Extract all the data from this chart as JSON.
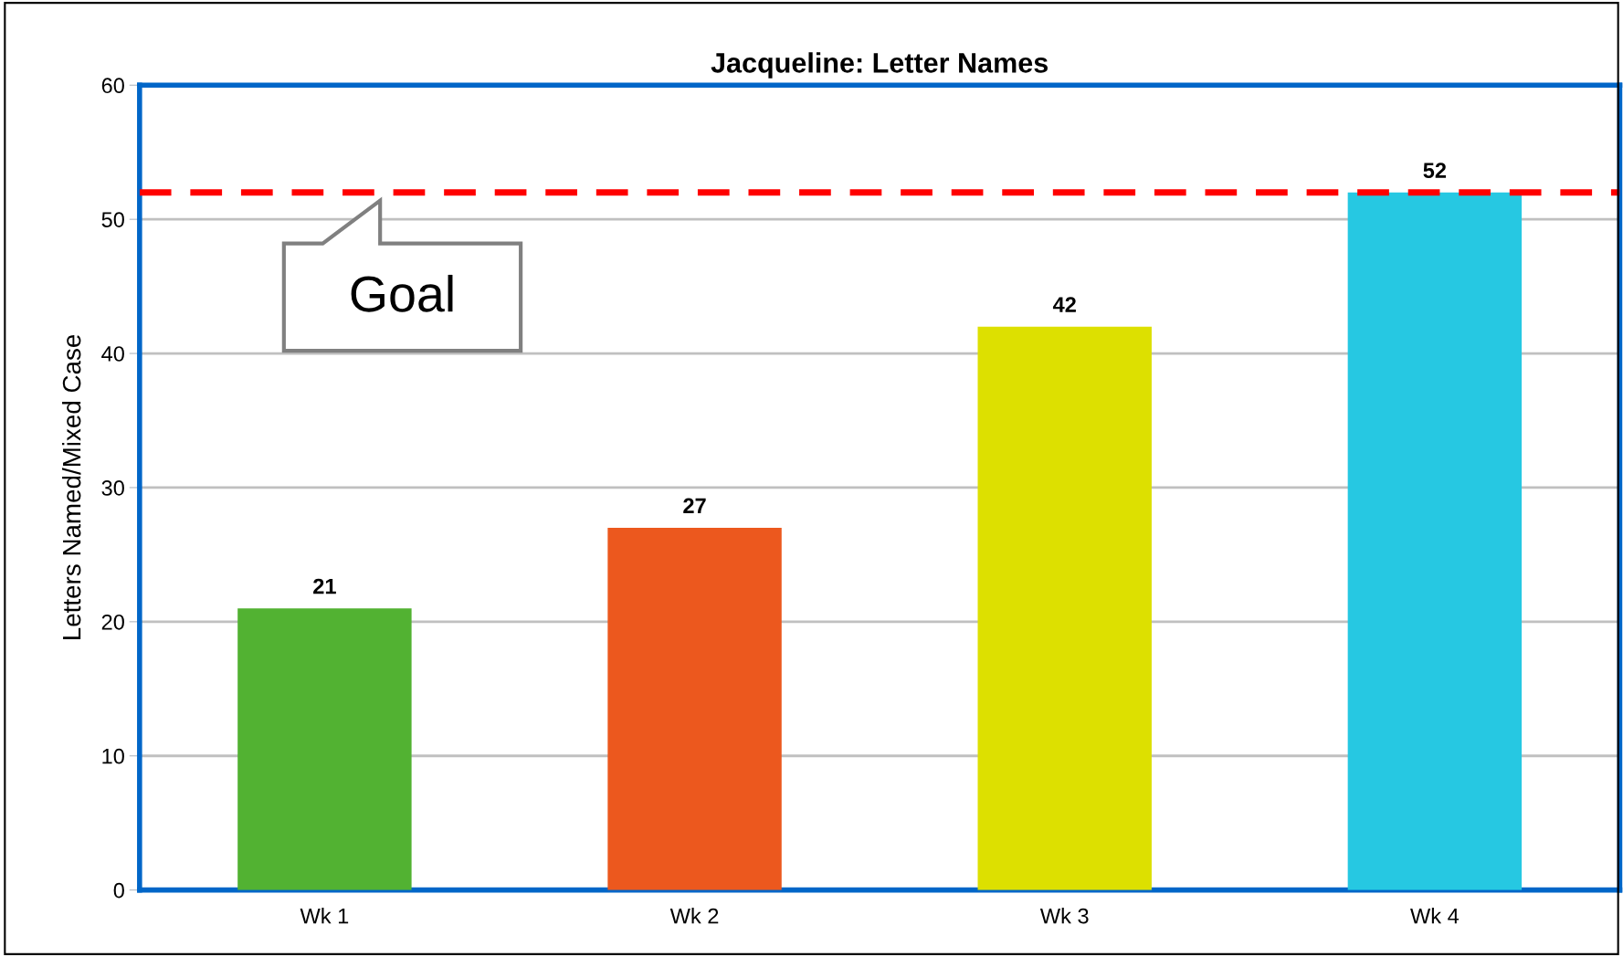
{
  "chart_data": {
    "type": "bar",
    "title": "Jacqueline: Letter Names",
    "ylabel": "Letters Named/Mixed Case",
    "categories": [
      "Wk 1",
      "Wk 2",
      "Wk 3",
      "Wk 4"
    ],
    "values": [
      21,
      27,
      42,
      52
    ],
    "colors": [
      "#52b232",
      "#ec581e",
      "#dde000",
      "#26c8e2"
    ],
    "ylim": [
      0,
      60
    ],
    "yticks": [
      0,
      10,
      20,
      30,
      40,
      50,
      60
    ],
    "grid": "y",
    "data_labels": true,
    "ref_lines": [
      {
        "axis": "y",
        "value": 52,
        "label": "Goal",
        "color": "#ff0000",
        "line_style": "dashed"
      }
    ]
  }
}
